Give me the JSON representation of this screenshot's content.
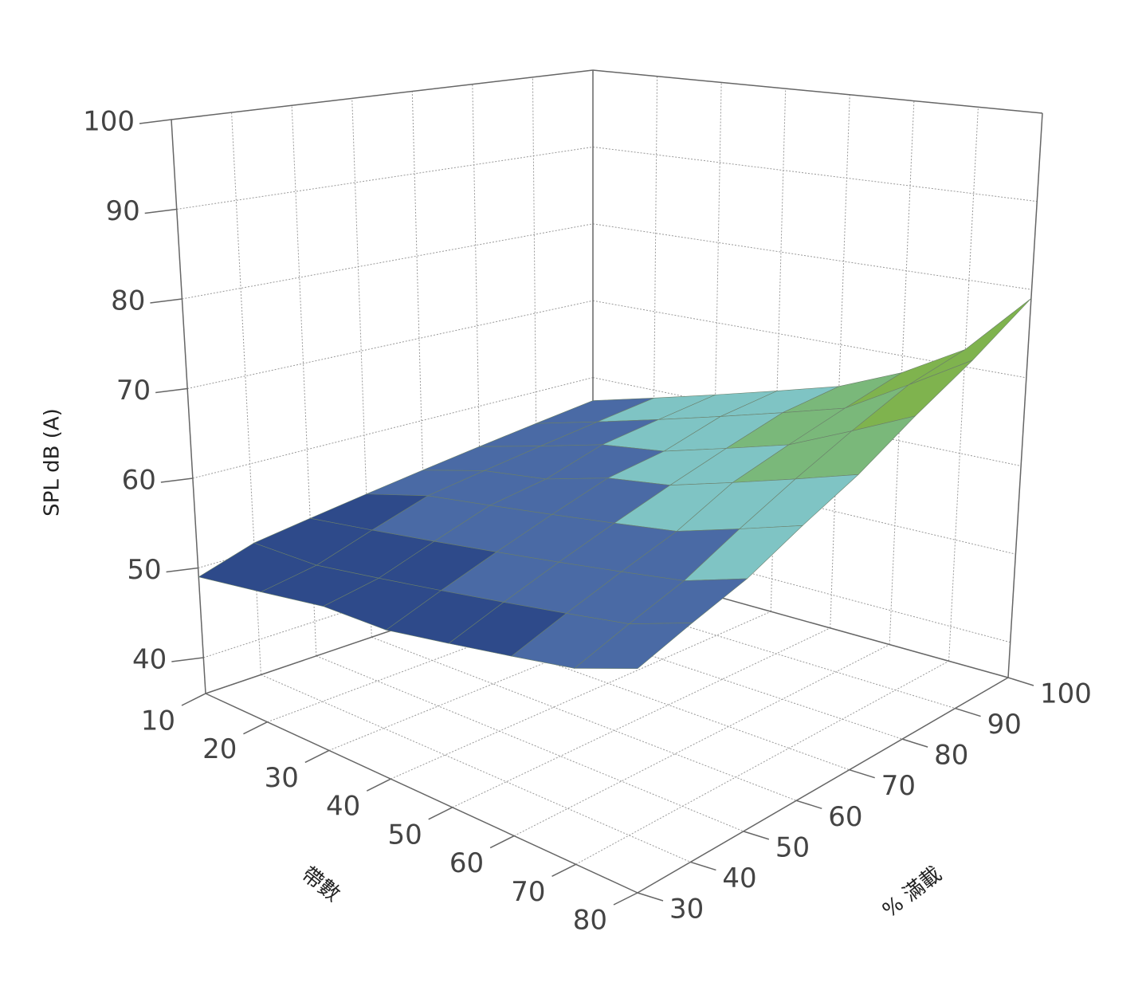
{
  "chart_data": {
    "type": "surface",
    "xlabel": "帶數",
    "ylabel": "% 滿載",
    "zlabel": "SPL dB (A)",
    "x": [
      10,
      20,
      30,
      40,
      50,
      60,
      70,
      80
    ],
    "y": [
      30,
      40,
      50,
      60,
      70,
      80,
      90,
      100
    ],
    "z": [
      [
        49,
        50,
        51,
        51,
        52,
        53,
        54,
        56
      ],
      [
        51,
        51,
        52,
        53,
        54,
        55,
        56,
        58
      ],
      [
        52,
        53,
        54,
        55,
        56,
        57,
        58,
        60
      ],
      [
        53,
        55,
        56,
        57,
        58,
        59,
        61,
        63
      ],
      [
        54,
        56,
        57,
        59,
        60,
        62,
        64,
        66
      ],
      [
        55,
        57,
        59,
        60,
        62,
        64,
        67,
        70
      ],
      [
        56,
        58,
        60,
        62,
        64,
        66,
        70,
        74
      ],
      [
        57,
        59,
        61,
        63,
        65,
        68,
        72,
        79
      ]
    ],
    "xlim": [
      10,
      80
    ],
    "ylim": [
      30,
      100
    ],
    "zlim": [
      36,
      100
    ],
    "xticks": [
      10,
      20,
      30,
      40,
      50,
      60,
      70,
      80
    ],
    "yticks": [
      30,
      40,
      50,
      60,
      70,
      80,
      90,
      100
    ],
    "zticks": [
      40,
      50,
      60,
      70,
      80,
      90,
      100
    ],
    "colormap": [
      "#2e4a8a",
      "#4a6aa5",
      "#7fc4c4",
      "#7ab87a",
      "#7fb34e",
      "#e8e86a"
    ],
    "grid": true
  }
}
